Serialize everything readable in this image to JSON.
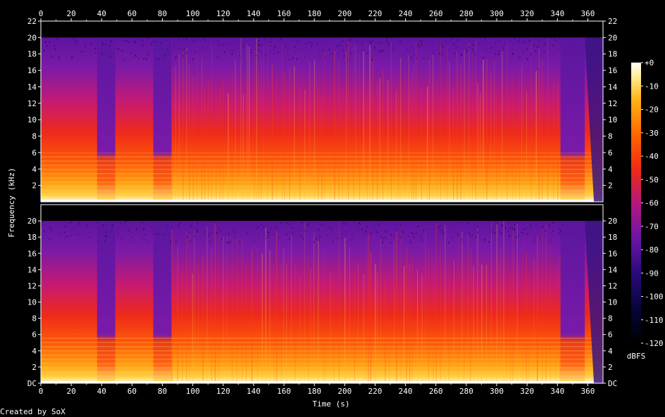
{
  "chart_data": {
    "type": "heatmap",
    "subtype": "spectrogram",
    "channels": 2,
    "xlabel": "Time (s)",
    "ylabel": "Frequency (kHz)",
    "xlim": [
      0,
      370
    ],
    "ylim_khz": [
      0,
      22
    ],
    "x_ticks": [
      "0",
      "20",
      "40",
      "60",
      "80",
      "100",
      "120",
      "140",
      "160",
      "180",
      "200",
      "220",
      "240",
      "260",
      "280",
      "300",
      "320",
      "340",
      "360"
    ],
    "x_tick_values": [
      0,
      20,
      40,
      60,
      80,
      100,
      120,
      140,
      160,
      180,
      200,
      220,
      240,
      260,
      280,
      300,
      320,
      340,
      360
    ],
    "x_minor_step": 10,
    "y_ticks_top": [
      "22",
      "20",
      "18",
      "16",
      "14",
      "12",
      "10",
      "8",
      "6",
      "4",
      "2"
    ],
    "y_tick_values_top": [
      22,
      20,
      18,
      16,
      14,
      12,
      10,
      8,
      6,
      4,
      2
    ],
    "y_ticks_bottom": [
      "20",
      "18",
      "16",
      "14",
      "12",
      "10",
      "8",
      "6",
      "4",
      "2",
      "DC"
    ],
    "y_tick_values_bottom": [
      20,
      18,
      16,
      14,
      12,
      10,
      8,
      6,
      4,
      2,
      0
    ],
    "colorbar": {
      "label": "dBFS",
      "ticks": [
        "+0",
        "-10",
        "-20",
        "-30",
        "-40",
        "-50",
        "-60",
        "-70",
        "-80",
        "-90",
        "-100",
        "-110",
        "-120"
      ],
      "tick_values": [
        0,
        -10,
        -20,
        -30,
        -40,
        -50,
        -60,
        -70,
        -80,
        -90,
        -100,
        -110,
        -120
      ],
      "range": [
        -120,
        0
      ]
    },
    "lowpass_cutoff_khz": 20,
    "quiet_intervals_s": [
      [
        37,
        49
      ],
      [
        74,
        86
      ],
      [
        342,
        358
      ]
    ],
    "dense_interval_s": [
      86,
      342
    ],
    "end_time_s": 370,
    "colors": {
      "background": "#000000",
      "silence": "#000000",
      "low": "#1a0a5e",
      "mid_low": "#6a1aa0",
      "mid": "#c81a6a",
      "mid_high": "#f02818",
      "high": "#ff8a00",
      "peak": "#ffe870",
      "max": "#ffffff"
    }
  },
  "footer": {
    "credit": "Created by SoX"
  }
}
